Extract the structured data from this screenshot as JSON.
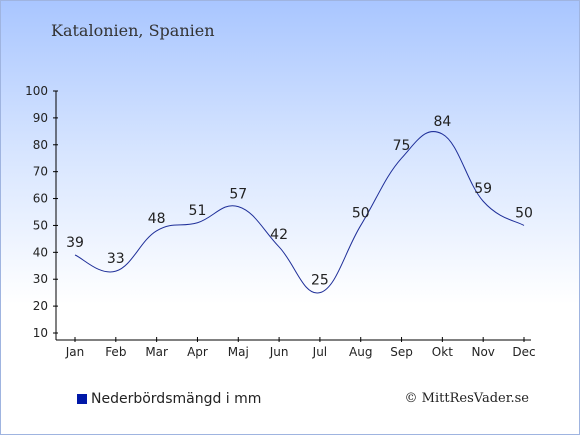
{
  "title": "Katalonien, Spanien",
  "legend_label": "Nederbördsmängd i mm",
  "copyright": "© MittResVader.se",
  "colors": {
    "line": "#1f2f99",
    "legend": "#0018a8"
  },
  "chart_data": {
    "type": "line",
    "categories": [
      "Jan",
      "Feb",
      "Mar",
      "Apr",
      "Maj",
      "Jun",
      "Jul",
      "Aug",
      "Sep",
      "Okt",
      "Nov",
      "Dec"
    ],
    "values": [
      39,
      33,
      48,
      51,
      57,
      42,
      25,
      50,
      75,
      84,
      59,
      50
    ],
    "ylim": [
      10,
      100
    ],
    "yticks": [
      10,
      20,
      30,
      40,
      50,
      60,
      70,
      80,
      90,
      100
    ],
    "grid": false,
    "legend_position": "bottom-left"
  }
}
